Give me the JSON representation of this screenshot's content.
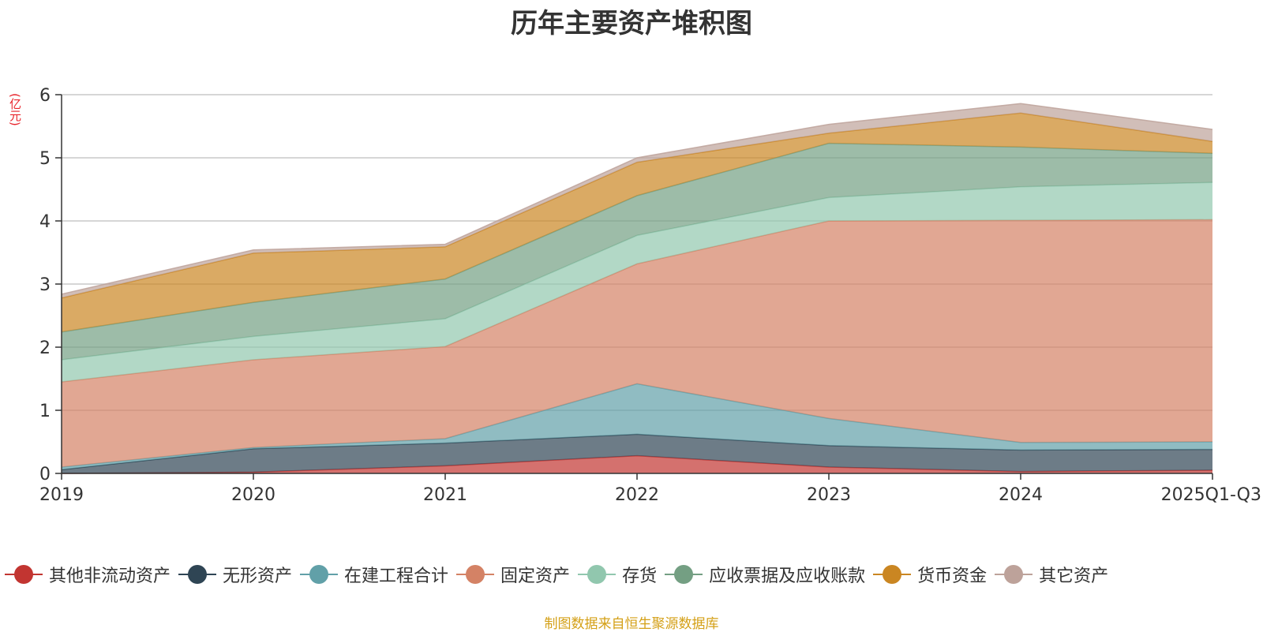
{
  "chart_data": {
    "type": "area",
    "stacked": true,
    "title": "历年主要资产堆积图",
    "ylabel": "(亿元)",
    "xlabel": "",
    "ylim": [
      0,
      6
    ],
    "y_ticks": [
      "0",
      "1",
      "2",
      "3",
      "4",
      "5",
      "6"
    ],
    "categories": [
      "2019",
      "2020",
      "2021",
      "2022",
      "2023",
      "2024",
      "2025Q1-Q3"
    ],
    "series": [
      {
        "name": "其他非流动资产",
        "color": "#c23531",
        "values": [
          0.0,
          0.02,
          0.12,
          0.28,
          0.1,
          0.03,
          0.05
        ]
      },
      {
        "name": "无形资产",
        "color": "#2f4554",
        "values": [
          0.06,
          0.37,
          0.36,
          0.34,
          0.34,
          0.34,
          0.33
        ]
      },
      {
        "name": "在建工程合计",
        "color": "#61a0a8",
        "values": [
          0.04,
          0.02,
          0.07,
          0.8,
          0.43,
          0.12,
          0.12
        ]
      },
      {
        "name": "固定资产",
        "color": "#d48265",
        "values": [
          1.35,
          1.39,
          1.46,
          1.9,
          3.13,
          3.52,
          3.52
        ]
      },
      {
        "name": "存货",
        "color": "#91c7ae",
        "values": [
          0.35,
          0.37,
          0.44,
          0.45,
          0.37,
          0.53,
          0.59
        ]
      },
      {
        "name": "应收票据及应收账款",
        "color": "#749f83",
        "values": [
          0.44,
          0.54,
          0.63,
          0.63,
          0.86,
          0.63,
          0.46
        ]
      },
      {
        "name": "货币资金",
        "color": "#ca8622",
        "values": [
          0.54,
          0.78,
          0.51,
          0.53,
          0.16,
          0.54,
          0.19
        ]
      },
      {
        "name": "其它资产",
        "color": "#bda29a",
        "values": [
          0.06,
          0.05,
          0.04,
          0.07,
          0.14,
          0.15,
          0.19
        ]
      }
    ]
  },
  "footer": {
    "source": "制图数据来自恒生聚源数据库"
  }
}
